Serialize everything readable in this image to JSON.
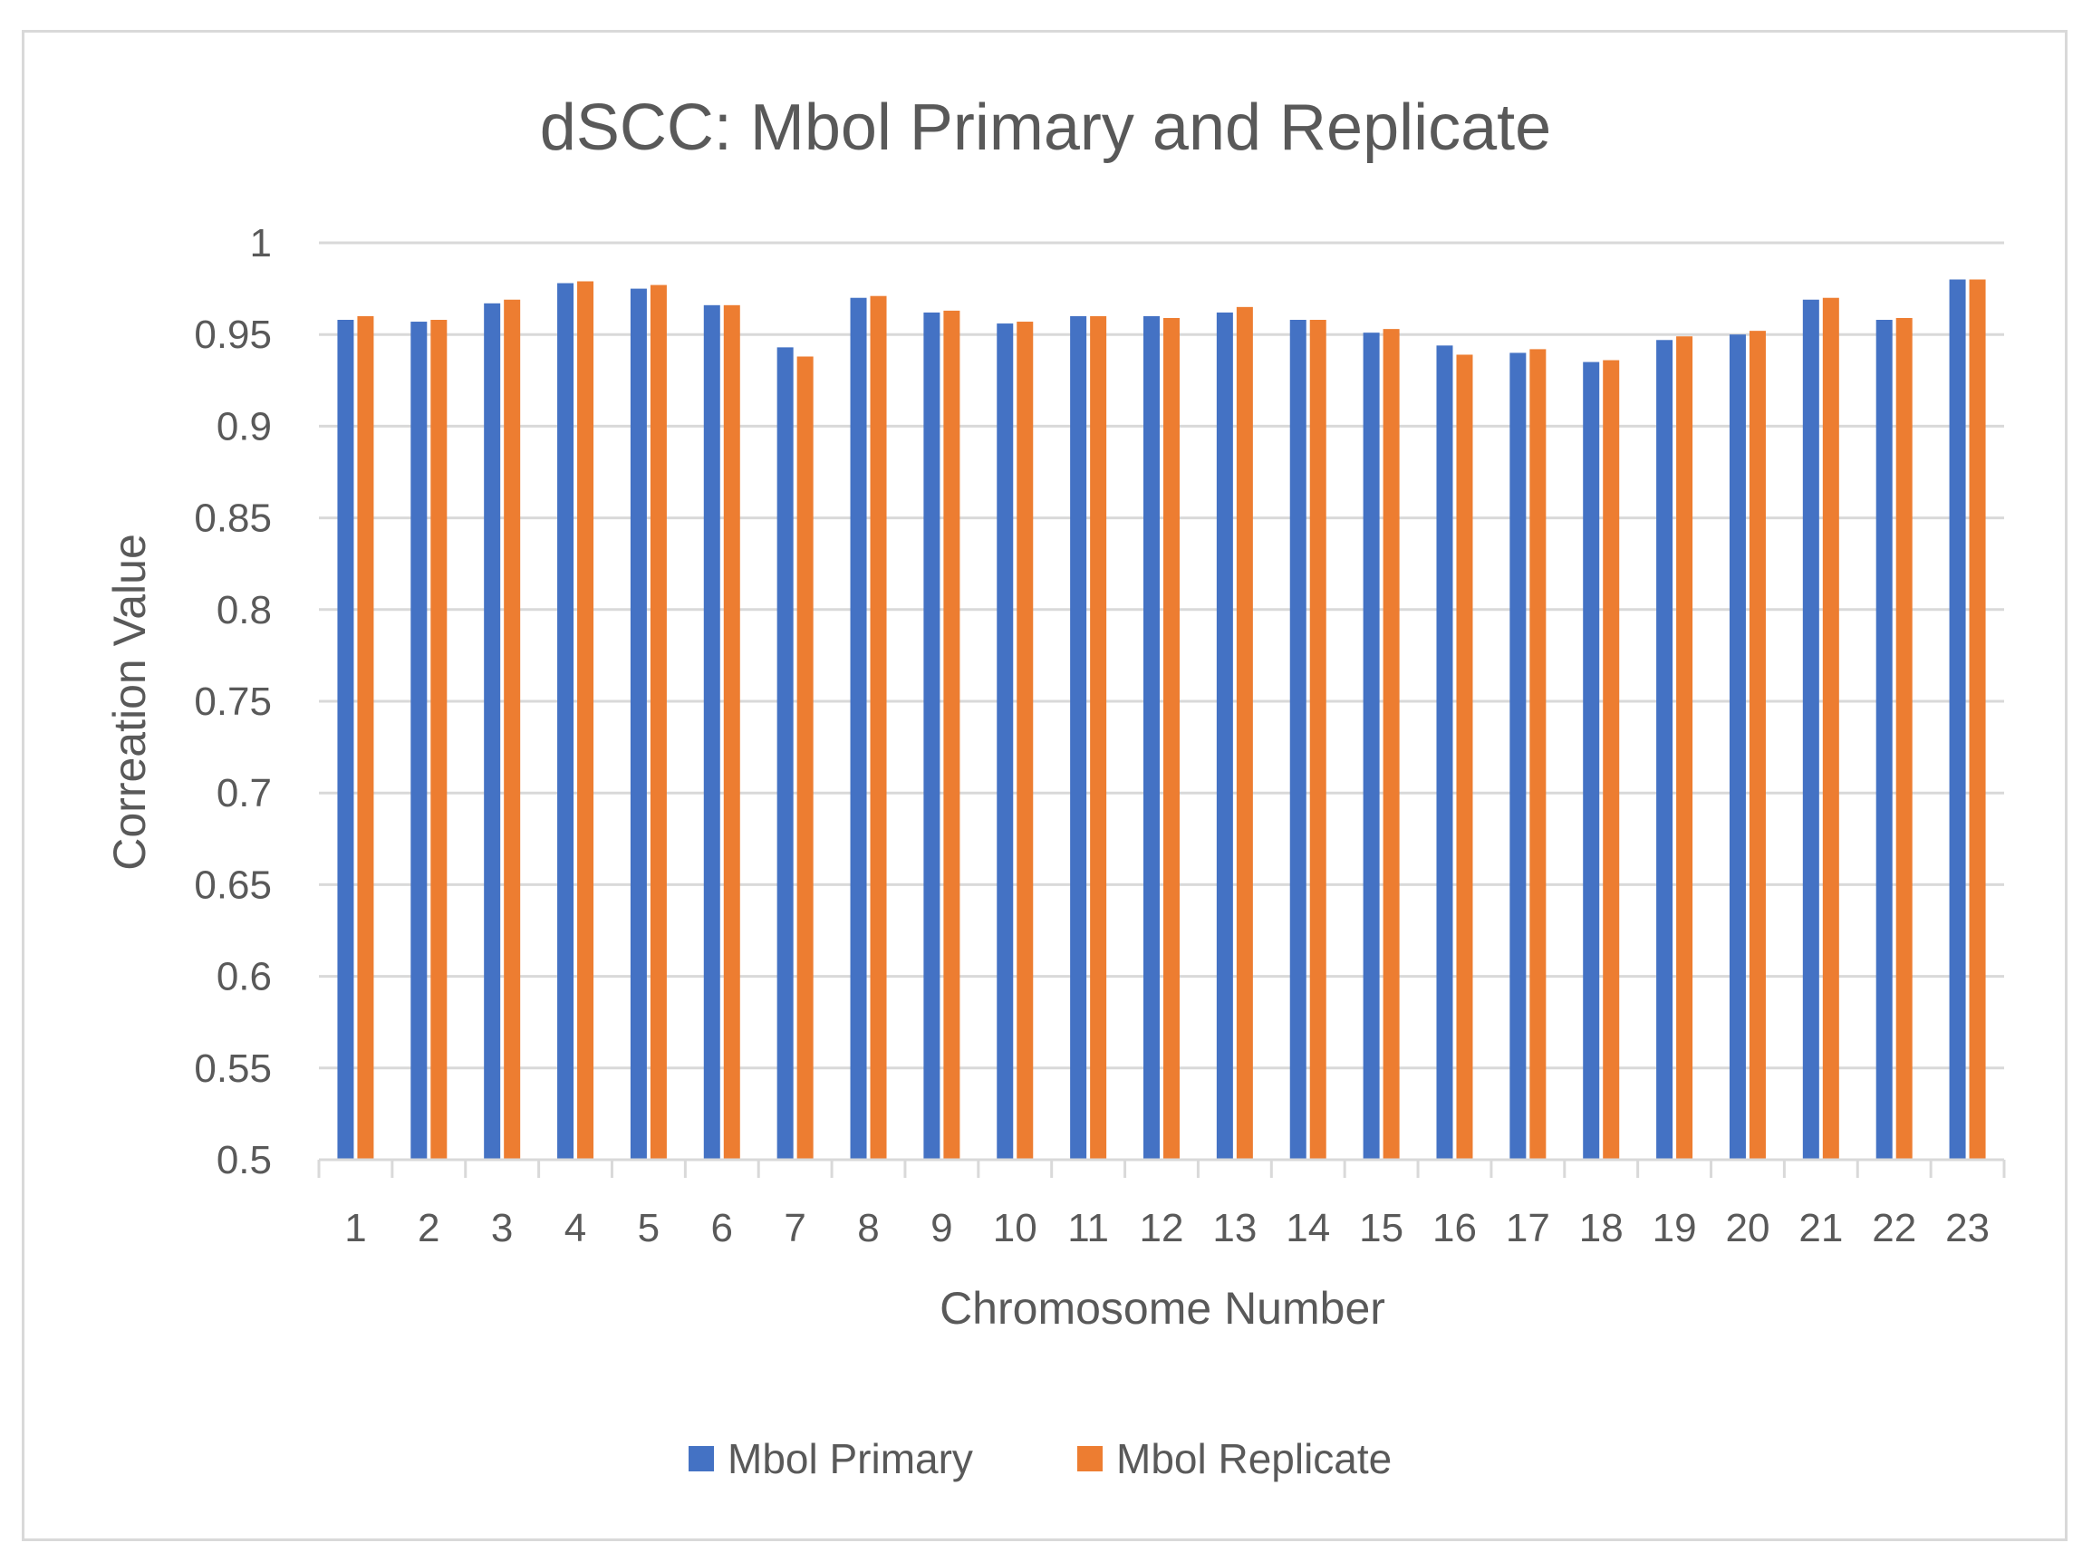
{
  "chart_data": {
    "type": "bar",
    "title": "dSCC: Mbol Primary and Replicate",
    "xlabel": "Chromosome Number",
    "ylabel": "Correation Value",
    "ylim": [
      0.5,
      1
    ],
    "yticks": [
      "0.5",
      "0.55",
      "0.6",
      "0.65",
      "0.7",
      "0.75",
      "0.8",
      "0.85",
      "0.9",
      "0.95",
      "1"
    ],
    "grid": true,
    "legend_position": "bottom",
    "categories": [
      "1",
      "2",
      "3",
      "4",
      "5",
      "6",
      "7",
      "8",
      "9",
      "10",
      "11",
      "12",
      "13",
      "14",
      "15",
      "16",
      "17",
      "18",
      "19",
      "20",
      "21",
      "22",
      "23"
    ],
    "series": [
      {
        "name": "Mbol Primary",
        "color": "#4472c4",
        "values": [
          0.958,
          0.957,
          0.967,
          0.978,
          0.975,
          0.966,
          0.943,
          0.97,
          0.962,
          0.956,
          0.96,
          0.96,
          0.962,
          0.958,
          0.951,
          0.944,
          0.94,
          0.935,
          0.947,
          0.95,
          0.969,
          0.958,
          0.98
        ]
      },
      {
        "name": "Mbol Replicate",
        "color": "#ed7d31",
        "values": [
          0.96,
          0.958,
          0.969,
          0.979,
          0.977,
          0.966,
          0.938,
          0.971,
          0.963,
          0.957,
          0.96,
          0.959,
          0.965,
          0.958,
          0.953,
          0.939,
          0.942,
          0.936,
          0.949,
          0.952,
          0.97,
          0.959,
          0.98
        ]
      }
    ]
  }
}
